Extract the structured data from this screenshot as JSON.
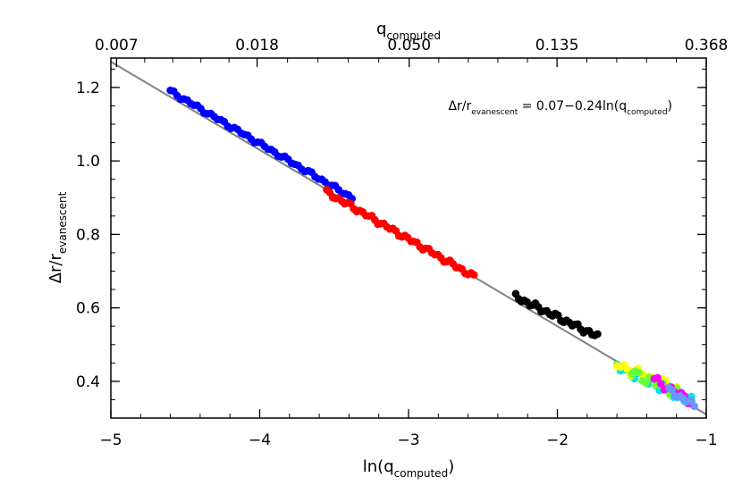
{
  "chart_data": {
    "type": "scatter",
    "xlabel_prefix": "ln(q",
    "xlabel_sub": "computed",
    "xlabel_suffix": ")",
    "ylabel_main": "Δr/r",
    "ylabel_sub": "evanescent",
    "top_axis_label_main": "q",
    "top_axis_label_sub": "computed",
    "annotation": {
      "lhs_main": "Δr/r",
      "lhs_sub": "evanescent",
      "mid": " = 0.07−0.24ln(q",
      "rhs_sub": "computed",
      "rhs_end": ")"
    },
    "xlim": [
      -5,
      -1
    ],
    "ylim": [
      0.3,
      1.28
    ],
    "x_ticks": [
      -5,
      -4,
      -3,
      -2,
      -1
    ],
    "x_tick_labels": [
      "−5",
      "−4",
      "−3",
      "−2",
      "−1"
    ],
    "y_ticks": [
      0.4,
      0.6,
      0.8,
      1.0,
      1.2
    ],
    "y_tick_labels": [
      "0.4",
      "0.6",
      "0.8",
      "1.0",
      "1.2"
    ],
    "top_ticks": [
      0.007,
      0.018,
      0.05,
      0.135,
      0.368
    ],
    "top_tick_labels": [
      "0.007",
      "0.018",
      "0.050",
      "0.135",
      "0.368"
    ],
    "fit": {
      "intercept": 0.07,
      "slope": -0.24,
      "color": "#808080"
    },
    "series": [
      {
        "color": "#0000ff",
        "x_start": -4.6,
        "x_end": -3.38,
        "n": 55,
        "y_start": 1.19,
        "y_end": 0.9,
        "jitter": 0.004
      },
      {
        "color": "#ff0000",
        "x_start": -3.55,
        "x_end": -2.56,
        "n": 50,
        "y_start": 0.915,
        "y_end": 0.685,
        "jitter": 0.005
      },
      {
        "color": "#000000",
        "x_start": -2.28,
        "x_end": -1.73,
        "n": 30,
        "y_start": 0.63,
        "y_end": 0.522,
        "jitter": 0.006
      },
      {
        "color": "#00e5e5",
        "x_start": -1.6,
        "x_end": -1.1,
        "n": 22,
        "y_start": 0.44,
        "y_end": 0.345,
        "jitter": 0.01
      },
      {
        "color": "#ffff00",
        "x_start": -1.6,
        "x_end": -1.2,
        "n": 18,
        "y_start": 0.445,
        "y_end": 0.38,
        "jitter": 0.01
      },
      {
        "color": "#66ff33",
        "x_start": -1.5,
        "x_end": -1.15,
        "n": 16,
        "y_start": 0.425,
        "y_end": 0.36,
        "jitter": 0.01
      },
      {
        "color": "#ff00ff",
        "x_start": -1.35,
        "x_end": -1.1,
        "n": 12,
        "y_start": 0.405,
        "y_end": 0.345,
        "jitter": 0.008
      },
      {
        "color": "#6699ff",
        "x_start": -1.25,
        "x_end": -1.08,
        "n": 10,
        "y_start": 0.375,
        "y_end": 0.335,
        "jitter": 0.006
      }
    ]
  }
}
